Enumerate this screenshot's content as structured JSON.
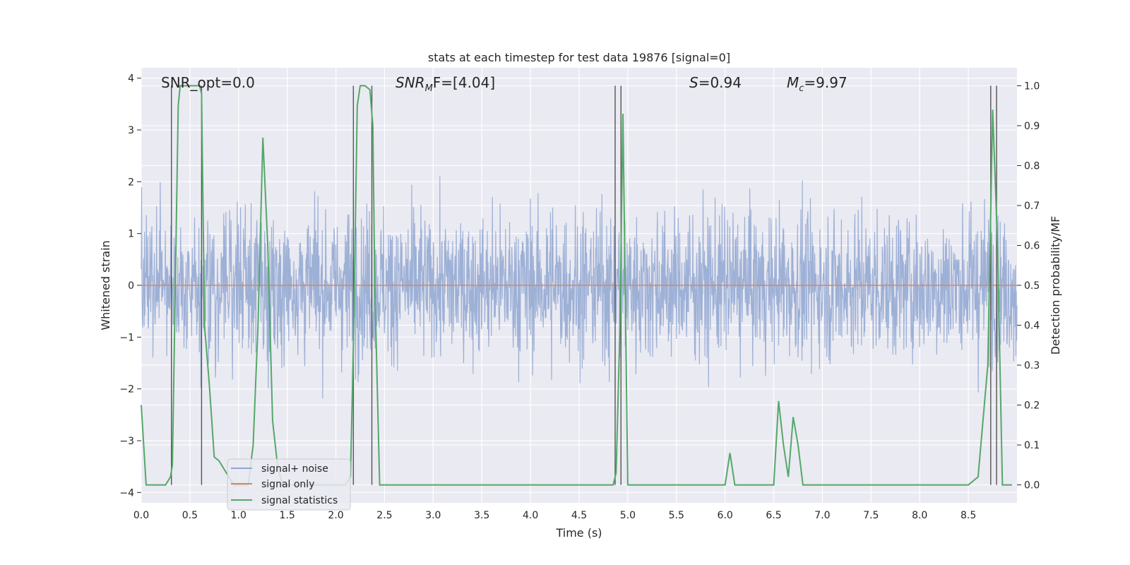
{
  "chart_data": {
    "type": "line",
    "title": "stats at each timestep for test data 19876 [signal=0]",
    "xlabel": "Time (s)",
    "ylabel": "Whitened strain",
    "y2label": "Detection probability/MF",
    "xlim": [
      0.0,
      9.0
    ],
    "ylim": [
      -4.2,
      4.2
    ],
    "y2lim": [
      -0.045,
      1.045
    ],
    "x_ticks": [
      "0.0",
      "0.5",
      "1.0",
      "1.5",
      "2.0",
      "2.5",
      "3.0",
      "3.5",
      "4.0",
      "4.5",
      "5.0",
      "5.5",
      "6.0",
      "6.5",
      "7.0",
      "7.5",
      "8.0",
      "8.5"
    ],
    "y_ticks": [
      "4",
      "3",
      "2",
      "1",
      "0",
      "−1",
      "−2",
      "−3",
      "−4"
    ],
    "y2_ticks": [
      "1.0",
      "0.9",
      "0.8",
      "0.7",
      "0.6",
      "0.5",
      "0.4",
      "0.3",
      "0.2",
      "0.1",
      "0.0"
    ],
    "grid": true,
    "legend_position": "lower-left",
    "annotations": {
      "snr_opt": "SNR_opt=0.0",
      "snr_mf_main": "SNR",
      "snr_mf_sub": "M",
      "snr_mf_rest": "F=[4.04]",
      "s_main": "S",
      "s_rest": "=0.94",
      "mc_main": "M",
      "mc_sub": "c",
      "mc_rest": "=9.97"
    },
    "series": [
      {
        "name": "signal+ noise",
        "color": "#8fa6d1",
        "kind": "noise",
        "approx_std": 0.7,
        "range": [
          -4.0,
          3.8
        ]
      },
      {
        "name": "signal only",
        "color": "#dd8452",
        "kind": "flat",
        "value": 0.0
      },
      {
        "name": "signal statistics",
        "color": "#55a868",
        "kind": "stat",
        "x": [
          0.0,
          0.05,
          0.1,
          0.15,
          0.2,
          0.25,
          0.3,
          0.32,
          0.35,
          0.38,
          0.4,
          0.45,
          0.5,
          0.55,
          0.6,
          0.62,
          0.65,
          0.7,
          0.75,
          0.8,
          0.85,
          0.9,
          0.95,
          1.0,
          1.05,
          1.1,
          1.15,
          1.2,
          1.25,
          1.3,
          1.35,
          1.4,
          1.45,
          1.5,
          1.55,
          1.6,
          1.65,
          1.7,
          1.75,
          1.8,
          1.85,
          1.9,
          1.95,
          2.0,
          2.05,
          2.1,
          2.15,
          2.18,
          2.22,
          2.25,
          2.3,
          2.35,
          2.38,
          2.4,
          2.45,
          2.5,
          2.6,
          2.8,
          3.0,
          3.5,
          4.0,
          4.5,
          4.8,
          4.85,
          4.88,
          4.92,
          4.95,
          5.0,
          5.1,
          5.5,
          5.9,
          6.0,
          6.05,
          6.1,
          6.2,
          6.4,
          6.5,
          6.55,
          6.6,
          6.65,
          6.7,
          6.75,
          6.8,
          6.85,
          6.9,
          7.0,
          7.1,
          7.5,
          8.0,
          8.4,
          8.45,
          8.5,
          8.6,
          8.7,
          8.75,
          8.8,
          8.85,
          8.9,
          8.95
        ],
        "y": [
          0.2,
          0.0,
          0.0,
          0.0,
          0.0,
          0.0,
          0.02,
          0.05,
          0.5,
          0.95,
          1.0,
          1.0,
          1.0,
          1.0,
          1.0,
          0.98,
          0.4,
          0.25,
          0.07,
          0.06,
          0.04,
          0.02,
          0.0,
          0.0,
          0.0,
          0.0,
          0.1,
          0.4,
          0.87,
          0.6,
          0.16,
          0.05,
          0.0,
          0.0,
          0.0,
          0.0,
          0.0,
          0.0,
          0.0,
          0.0,
          0.0,
          0.0,
          0.0,
          0.0,
          0.0,
          0.0,
          0.02,
          0.35,
          0.95,
          1.0,
          1.0,
          0.99,
          0.9,
          0.5,
          0.0,
          0.0,
          0.0,
          0.0,
          0.0,
          0.0,
          0.0,
          0.0,
          0.0,
          0.0,
          0.03,
          0.4,
          0.93,
          0.0,
          0.0,
          0.0,
          0.0,
          0.0,
          0.08,
          0.0,
          0.0,
          0.0,
          0.0,
          0.21,
          0.1,
          0.02,
          0.17,
          0.1,
          0.0,
          0.0,
          0.0,
          0.0,
          0.0,
          0.0,
          0.0,
          0.0,
          0.0,
          0.0,
          0.02,
          0.3,
          0.94,
          0.6,
          0.0,
          0.0,
          0.0
        ]
      }
    ],
    "vertical_markers": [
      0.31,
      0.62,
      2.18,
      2.37,
      4.87,
      4.93,
      8.73,
      8.79
    ]
  }
}
